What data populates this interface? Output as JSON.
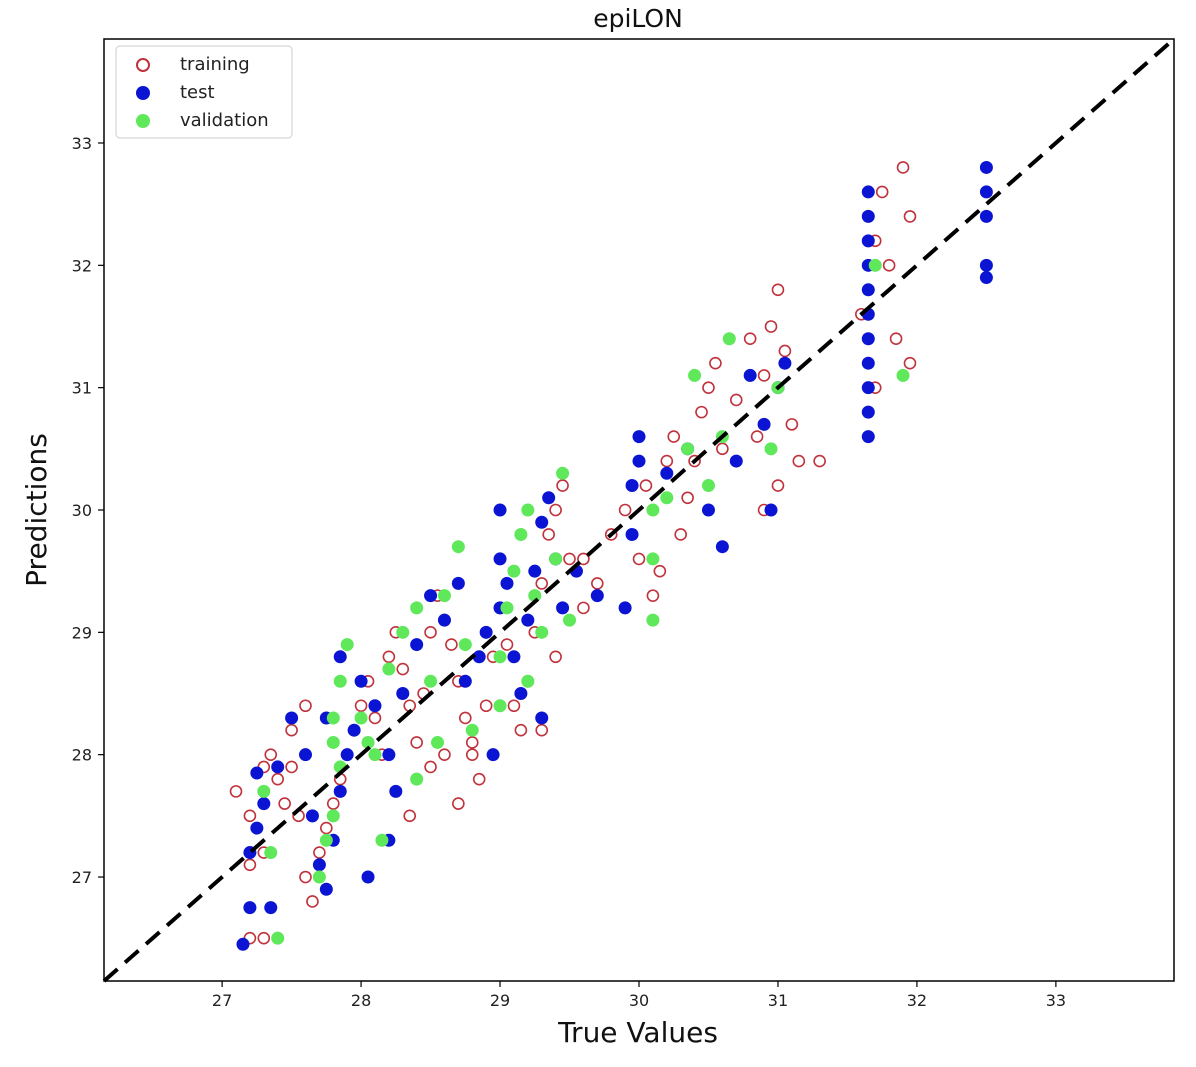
{
  "chart_data": {
    "type": "scatter",
    "title": "epiLON",
    "xlabel": "True Values",
    "ylabel": "Predictions",
    "xlim": [
      26.15,
      33.85
    ],
    "ylim": [
      26.15,
      33.85
    ],
    "xticks": [
      27,
      28,
      29,
      30,
      31,
      32,
      33
    ],
    "yticks": [
      27,
      28,
      29,
      30,
      31,
      32,
      33
    ],
    "legend_position": "top-left",
    "reference_line": {
      "style": "dashed",
      "color": "#000000",
      "from": [
        26.15,
        26.15
      ],
      "to": [
        33.85,
        33.85
      ]
    },
    "series": [
      {
        "name": "training",
        "marker": "open-circle",
        "color": "#c0323c",
        "points": [
          [
            27.2,
            26.5
          ],
          [
            27.3,
            26.5
          ],
          [
            27.4,
            26.5
          ],
          [
            27.2,
            27.1
          ],
          [
            27.3,
            27.2
          ],
          [
            27.2,
            27.5
          ],
          [
            27.3,
            27.9
          ],
          [
            27.35,
            28.0
          ],
          [
            27.4,
            27.8
          ],
          [
            27.45,
            27.6
          ],
          [
            27.5,
            27.9
          ],
          [
            27.55,
            27.5
          ],
          [
            27.6,
            27.0
          ],
          [
            27.65,
            26.8
          ],
          [
            27.7,
            27.2
          ],
          [
            27.75,
            27.4
          ],
          [
            27.8,
            27.6
          ],
          [
            27.85,
            27.8
          ],
          [
            27.9,
            28.0
          ],
          [
            27.95,
            28.2
          ],
          [
            28.0,
            28.4
          ],
          [
            28.05,
            28.6
          ],
          [
            28.1,
            28.3
          ],
          [
            28.15,
            28.0
          ],
          [
            28.2,
            28.8
          ],
          [
            28.25,
            29.0
          ],
          [
            28.3,
            28.7
          ],
          [
            28.35,
            28.4
          ],
          [
            28.4,
            28.1
          ],
          [
            28.45,
            28.5
          ],
          [
            28.5,
            29.0
          ],
          [
            28.55,
            29.3
          ],
          [
            28.6,
            29.1
          ],
          [
            28.65,
            28.9
          ],
          [
            28.7,
            28.6
          ],
          [
            28.75,
            28.3
          ],
          [
            28.8,
            28.0
          ],
          [
            28.85,
            27.8
          ],
          [
            28.9,
            28.4
          ],
          [
            28.95,
            28.8
          ],
          [
            29.0,
            29.2
          ],
          [
            29.05,
            28.9
          ],
          [
            29.1,
            28.4
          ],
          [
            29.15,
            28.2
          ],
          [
            29.2,
            28.6
          ],
          [
            29.25,
            29.0
          ],
          [
            29.3,
            29.4
          ],
          [
            29.35,
            29.8
          ],
          [
            29.4,
            30.0
          ],
          [
            29.45,
            30.2
          ],
          [
            29.5,
            29.6
          ],
          [
            29.6,
            29.2
          ],
          [
            29.7,
            29.4
          ],
          [
            29.8,
            29.8
          ],
          [
            29.9,
            30.0
          ],
          [
            30.0,
            29.6
          ],
          [
            30.05,
            30.2
          ],
          [
            30.1,
            29.3
          ],
          [
            30.15,
            29.5
          ],
          [
            30.2,
            30.4
          ],
          [
            30.25,
            30.6
          ],
          [
            30.3,
            29.8
          ],
          [
            30.35,
            30.1
          ],
          [
            30.4,
            30.4
          ],
          [
            30.45,
            30.8
          ],
          [
            30.5,
            31.0
          ],
          [
            30.55,
            31.2
          ],
          [
            30.6,
            30.5
          ],
          [
            30.7,
            30.9
          ],
          [
            30.8,
            31.4
          ],
          [
            30.85,
            30.6
          ],
          [
            30.9,
            31.1
          ],
          [
            30.95,
            31.5
          ],
          [
            31.0,
            31.8
          ],
          [
            31.05,
            31.3
          ],
          [
            31.1,
            30.7
          ],
          [
            31.15,
            30.4
          ],
          [
            31.3,
            30.4
          ],
          [
            31.6,
            31.6
          ],
          [
            31.7,
            32.2
          ],
          [
            31.75,
            32.6
          ],
          [
            31.8,
            32.0
          ],
          [
            31.85,
            31.4
          ],
          [
            31.9,
            32.8
          ],
          [
            31.95,
            32.4
          ],
          [
            31.95,
            31.2
          ],
          [
            31.7,
            31.0
          ],
          [
            31.0,
            30.2
          ],
          [
            30.9,
            30.0
          ],
          [
            28.35,
            27.5
          ],
          [
            28.5,
            27.9
          ],
          [
            28.6,
            28.0
          ],
          [
            28.7,
            27.6
          ],
          [
            28.8,
            28.1
          ],
          [
            27.1,
            27.7
          ],
          [
            27.6,
            28.4
          ],
          [
            27.5,
            28.2
          ],
          [
            29.3,
            28.2
          ],
          [
            29.4,
            28.8
          ],
          [
            29.6,
            29.6
          ]
        ]
      },
      {
        "name": "test",
        "marker": "filled-circle",
        "color": "#0a14d2",
        "points": [
          [
            27.15,
            26.45
          ],
          [
            27.2,
            26.75
          ],
          [
            27.35,
            26.75
          ],
          [
            27.2,
            27.2
          ],
          [
            27.25,
            27.4
          ],
          [
            27.3,
            27.6
          ],
          [
            27.25,
            27.85
          ],
          [
            27.4,
            27.9
          ],
          [
            27.5,
            28.3
          ],
          [
            27.6,
            28.0
          ],
          [
            27.65,
            27.5
          ],
          [
            27.7,
            27.1
          ],
          [
            27.75,
            26.9
          ],
          [
            27.8,
            27.3
          ],
          [
            27.85,
            27.7
          ],
          [
            27.9,
            28.0
          ],
          [
            27.95,
            28.2
          ],
          [
            28.0,
            28.6
          ],
          [
            28.1,
            28.4
          ],
          [
            28.2,
            28.0
          ],
          [
            28.25,
            27.7
          ],
          [
            28.3,
            28.5
          ],
          [
            28.4,
            28.9
          ],
          [
            28.5,
            29.3
          ],
          [
            28.6,
            29.1
          ],
          [
            28.7,
            29.4
          ],
          [
            28.75,
            28.6
          ],
          [
            28.85,
            28.8
          ],
          [
            28.9,
            29.0
          ],
          [
            28.95,
            28.0
          ],
          [
            29.0,
            29.2
          ],
          [
            29.0,
            29.6
          ],
          [
            29.0,
            30.0
          ],
          [
            29.05,
            29.4
          ],
          [
            29.1,
            28.8
          ],
          [
            29.15,
            28.5
          ],
          [
            29.2,
            29.1
          ],
          [
            29.25,
            29.5
          ],
          [
            29.3,
            29.9
          ],
          [
            29.35,
            30.1
          ],
          [
            29.4,
            29.6
          ],
          [
            29.45,
            29.2
          ],
          [
            29.55,
            29.5
          ],
          [
            29.7,
            29.3
          ],
          [
            29.9,
            29.2
          ],
          [
            29.95,
            29.8
          ],
          [
            29.95,
            30.2
          ],
          [
            30.0,
            30.4
          ],
          [
            30.0,
            30.6
          ],
          [
            30.2,
            30.3
          ],
          [
            30.35,
            30.5
          ],
          [
            30.5,
            30.0
          ],
          [
            30.6,
            29.7
          ],
          [
            30.7,
            30.4
          ],
          [
            30.8,
            31.1
          ],
          [
            30.9,
            30.7
          ],
          [
            31.0,
            31.0
          ],
          [
            31.05,
            31.2
          ],
          [
            30.95,
            30.0
          ],
          [
            31.65,
            30.6
          ],
          [
            31.65,
            30.8
          ],
          [
            31.65,
            31.0
          ],
          [
            31.65,
            31.2
          ],
          [
            31.65,
            31.4
          ],
          [
            31.65,
            31.6
          ],
          [
            31.65,
            31.8
          ],
          [
            31.65,
            32.0
          ],
          [
            31.65,
            32.2
          ],
          [
            31.65,
            32.4
          ],
          [
            31.65,
            32.6
          ],
          [
            32.5,
            31.9
          ],
          [
            32.5,
            32.0
          ],
          [
            32.5,
            32.4
          ],
          [
            32.5,
            32.6
          ],
          [
            32.5,
            32.8
          ],
          [
            27.75,
            28.3
          ],
          [
            27.85,
            28.8
          ],
          [
            28.05,
            27.0
          ],
          [
            28.2,
            27.3
          ],
          [
            29.3,
            28.3
          ]
        ]
      },
      {
        "name": "validation",
        "marker": "filled-circle",
        "color": "#5ee85a",
        "points": [
          [
            27.4,
            26.5
          ],
          [
            27.35,
            27.2
          ],
          [
            27.3,
            27.7
          ],
          [
            27.7,
            27.0
          ],
          [
            27.75,
            27.3
          ],
          [
            27.8,
            27.5
          ],
          [
            27.85,
            27.9
          ],
          [
            27.8,
            28.3
          ],
          [
            27.85,
            28.6
          ],
          [
            27.9,
            28.9
          ],
          [
            28.0,
            28.3
          ],
          [
            28.1,
            28.0
          ],
          [
            28.15,
            27.3
          ],
          [
            28.2,
            28.7
          ],
          [
            28.3,
            29.0
          ],
          [
            28.4,
            29.2
          ],
          [
            28.5,
            28.6
          ],
          [
            28.55,
            28.1
          ],
          [
            28.6,
            29.3
          ],
          [
            28.7,
            29.7
          ],
          [
            28.75,
            28.9
          ],
          [
            28.8,
            28.2
          ],
          [
            29.0,
            28.4
          ],
          [
            29.0,
            28.8
          ],
          [
            29.05,
            29.2
          ],
          [
            29.1,
            29.5
          ],
          [
            29.15,
            29.8
          ],
          [
            29.2,
            30.0
          ],
          [
            29.25,
            29.3
          ],
          [
            29.3,
            29.0
          ],
          [
            29.4,
            29.6
          ],
          [
            29.45,
            30.3
          ],
          [
            29.5,
            29.1
          ],
          [
            30.1,
            29.1
          ],
          [
            30.1,
            29.6
          ],
          [
            30.1,
            30.0
          ],
          [
            30.2,
            30.1
          ],
          [
            30.35,
            30.5
          ],
          [
            30.4,
            31.1
          ],
          [
            30.6,
            30.6
          ],
          [
            30.65,
            31.4
          ],
          [
            30.95,
            30.5
          ],
          [
            31.0,
            31.0
          ],
          [
            31.7,
            32.0
          ],
          [
            31.9,
            31.1
          ],
          [
            28.4,
            27.8
          ],
          [
            27.8,
            28.1
          ],
          [
            28.05,
            28.1
          ],
          [
            29.2,
            28.6
          ],
          [
            30.5,
            30.2
          ]
        ]
      }
    ]
  }
}
